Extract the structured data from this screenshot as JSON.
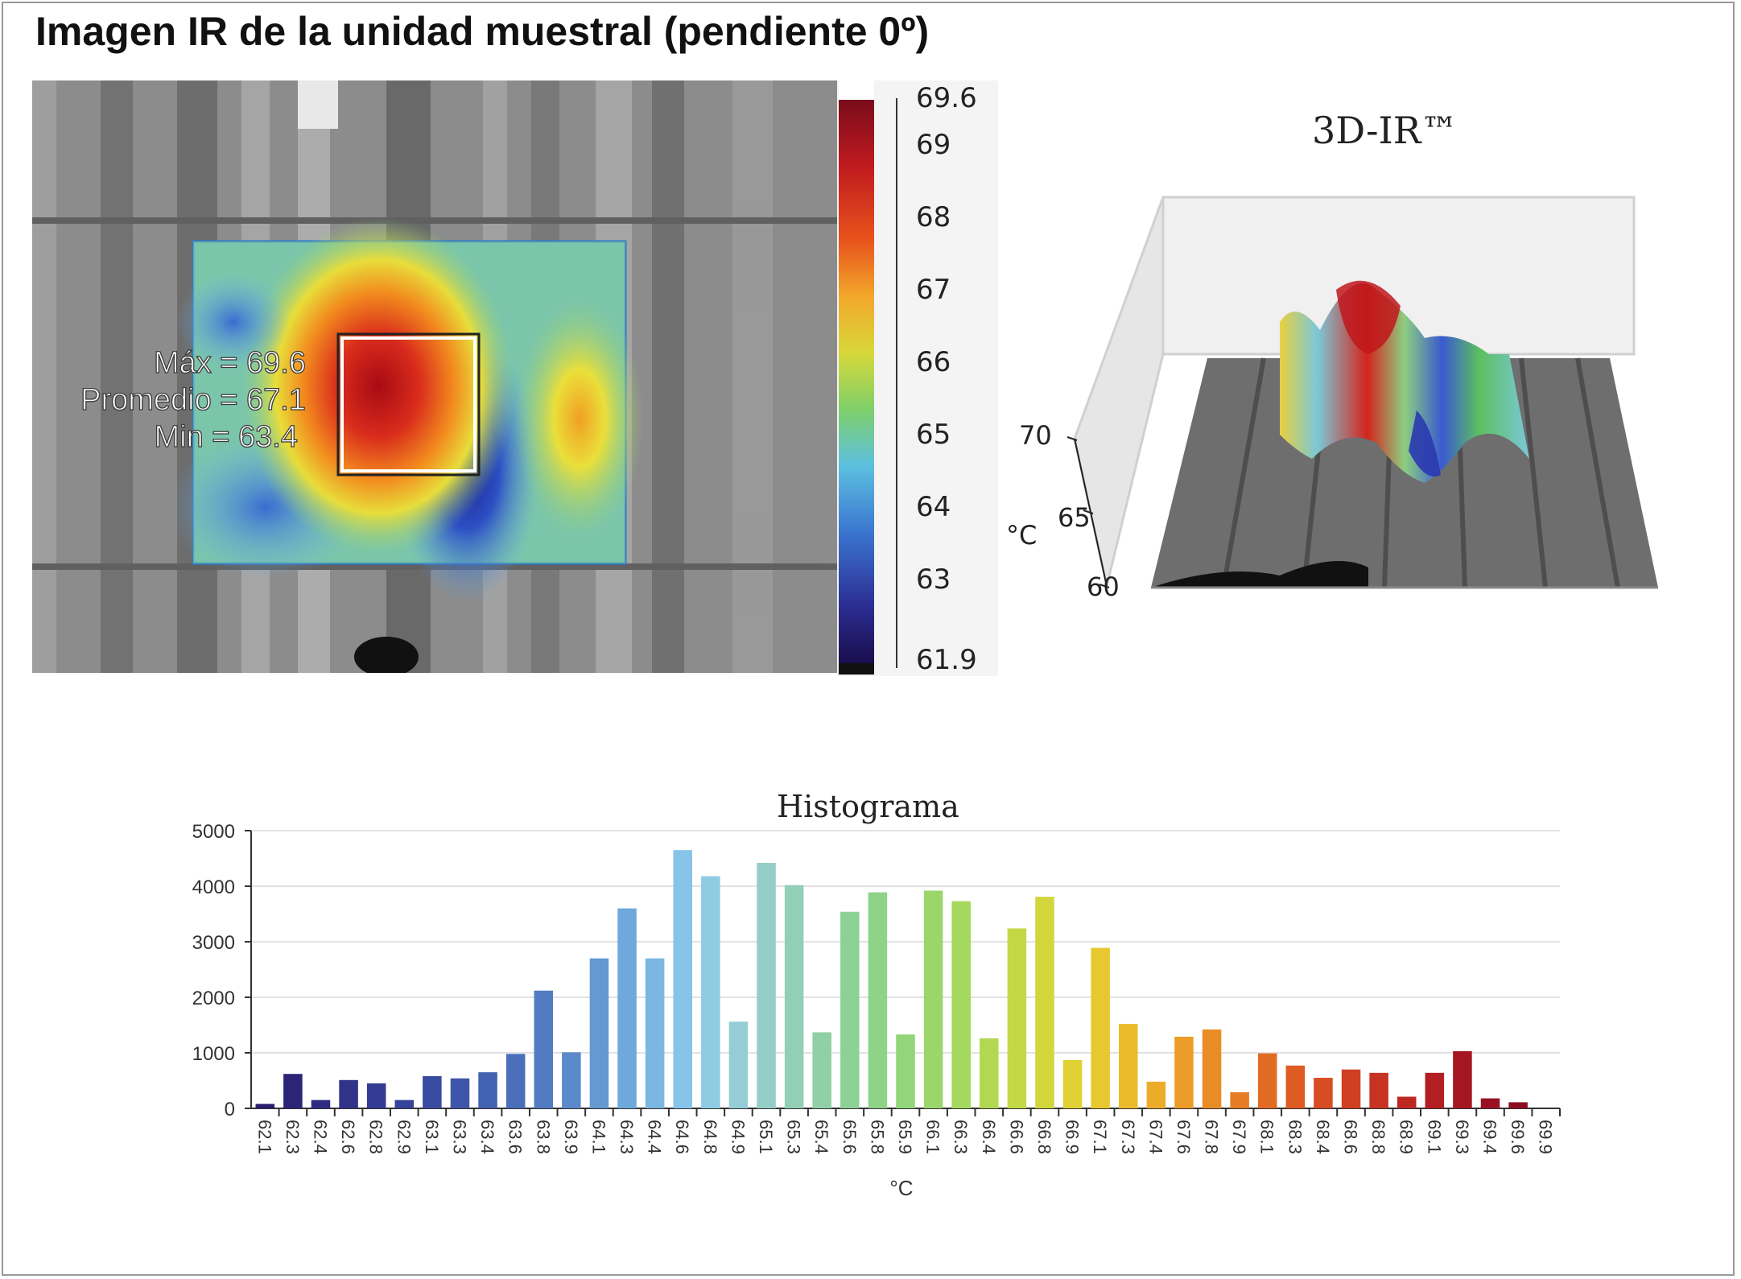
{
  "title": "Imagen IR de la unidad muestral (pendiente 0º)",
  "ir_image": {
    "stats": {
      "max": "Máx = 69.6",
      "mean": "Promedio = 67.1",
      "min": "Min = 63.4"
    },
    "colorbar_ticks": [
      "69.6",
      "69",
      "68",
      "67",
      "66",
      "65",
      "64",
      "63",
      "61.9"
    ],
    "colorbar_values": [
      69.6,
      69,
      68,
      67,
      66,
      65,
      64,
      63,
      61.9
    ]
  },
  "view3d": {
    "title": "3D-IR™",
    "unit": "°C",
    "z_ticks": [
      "70",
      "65",
      "60"
    ]
  },
  "chart_data": {
    "type": "bar",
    "title": "Histograma",
    "xlabel": "°C",
    "ylabel": "",
    "ylim": [
      0,
      5000
    ],
    "yticks": [
      "5000",
      "4000",
      "3000",
      "2000",
      "1000",
      "0"
    ],
    "categories": [
      "62.1",
      "62.3",
      "62.4",
      "62.6",
      "62.8",
      "62.9",
      "63.1",
      "63.3",
      "63.4",
      "63.6",
      "63.8",
      "63.9",
      "64.1",
      "64.3",
      "64.4",
      "64.6",
      "64.8",
      "64.9",
      "65.1",
      "65.3",
      "65.4",
      "65.6",
      "65.8",
      "65.9",
      "66.1",
      "66.3",
      "66.4",
      "66.6",
      "66.8",
      "66.9",
      "67.1",
      "67.3",
      "67.4",
      "67.6",
      "67.8",
      "67.9",
      "68.1",
      "68.3",
      "68.4",
      "68.6",
      "68.8",
      "68.9",
      "69.1",
      "69.3",
      "69.4",
      "69.6",
      "69.9"
    ],
    "values": [
      80,
      620,
      150,
      510,
      450,
      150,
      580,
      540,
      650,
      980,
      2120,
      1010,
      2700,
      3600,
      2700,
      4650,
      4180,
      1560,
      4420,
      4020,
      1370,
      3540,
      3890,
      1330,
      3920,
      3730,
      1260,
      3240,
      3810,
      870,
      2890,
      1520,
      480,
      1290,
      1420,
      290,
      990,
      770,
      550,
      700,
      640,
      210,
      640,
      1030,
      180,
      110,
      0
    ],
    "grid": "horizontal",
    "colors": [
      "#281d6e",
      "#2c2477",
      "#2f2b80",
      "#313389",
      "#333b92",
      "#36439a",
      "#3a4ca2",
      "#3e56aa",
      "#4462b2",
      "#4b6fba",
      "#527cc2",
      "#5b8aca",
      "#6499d2",
      "#6fa8da",
      "#7bb7e2",
      "#86c4ea",
      "#8fcbe3",
      "#94cdd6",
      "#94cec6",
      "#93cfb6",
      "#90d0a6",
      "#8ed197",
      "#8dd388",
      "#92d57a",
      "#9ad66c",
      "#a5d85e",
      "#b2d852",
      "#c2d847",
      "#d2d63c",
      "#e0d234",
      "#e8c830",
      "#ebbb2d",
      "#ecac2a",
      "#ec9c28",
      "#ea8c26",
      "#e67c25",
      "#e26b24",
      "#dd5b23",
      "#d74c23",
      "#d03f22",
      "#c73322",
      "#bd2822",
      "#b21e22",
      "#a61622",
      "#9a1022",
      "#8e0c22",
      "#820822"
    ]
  }
}
